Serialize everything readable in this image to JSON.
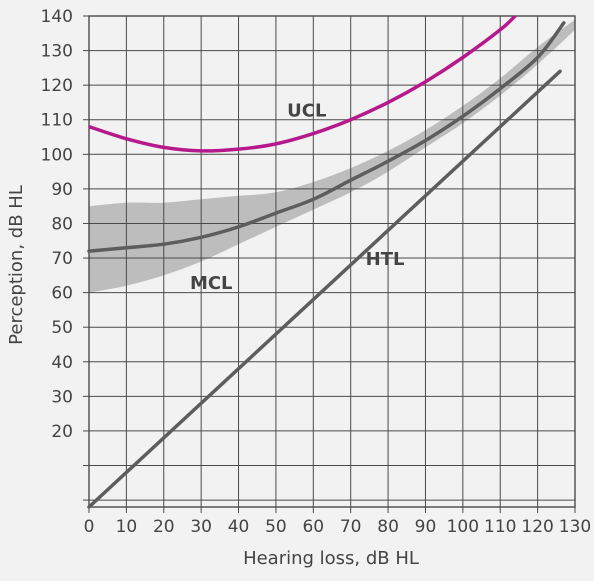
{
  "chart_data": {
    "type": "line",
    "title": "",
    "xlabel": "Hearing loss, dB HL",
    "ylabel": "Perception, dB HL",
    "xlim": [
      0,
      130
    ],
    "ylim": [
      -2,
      140
    ],
    "x_ticks": [
      0,
      10,
      20,
      30,
      40,
      50,
      60,
      70,
      80,
      90,
      100,
      110,
      120,
      130
    ],
    "y_ticks": [
      20,
      30,
      40,
      50,
      60,
      70,
      80,
      90,
      100,
      110,
      120,
      130,
      140
    ],
    "grid": true,
    "band": {
      "name": "MCL range",
      "x": [
        0,
        10,
        20,
        30,
        40,
        50,
        60,
        70,
        80,
        90,
        100,
        110,
        120,
        130
      ],
      "upper": [
        85,
        86,
        86,
        87,
        88,
        89,
        92,
        96,
        101,
        107,
        114,
        122,
        131,
        139
      ],
      "lower": [
        60,
        62,
        65,
        69,
        74,
        79,
        84,
        89,
        95,
        102,
        109,
        117,
        126,
        136
      ]
    },
    "series": [
      {
        "name": "UCL",
        "color": "#b5198c",
        "x": [
          0,
          10,
          20,
          30,
          40,
          50,
          60,
          70,
          80,
          90,
          100,
          110,
          114
        ],
        "y": [
          108,
          104.5,
          102,
          101,
          101.5,
          103,
          106,
          110,
          115,
          121,
          128,
          136,
          140
        ]
      },
      {
        "name": "MCL",
        "color": "#5d5d5d",
        "x": [
          0,
          10,
          20,
          30,
          40,
          50,
          60,
          70,
          80,
          90,
          100,
          110,
          120,
          127
        ],
        "y": [
          72,
          73,
          74,
          76,
          79,
          83,
          87,
          92.5,
          98,
          104,
          111,
          119,
          128,
          138
        ]
      },
      {
        "name": "HTL",
        "color": "#5d5d5d",
        "x": [
          0,
          126
        ],
        "y": [
          -2,
          124
        ]
      }
    ],
    "annotations": [
      {
        "text": "UCL",
        "x": 53,
        "y": 111,
        "series": "UCL"
      },
      {
        "text": "MCL",
        "x": 27,
        "y": 61,
        "series": "MCL"
      },
      {
        "text": "HTL",
        "x": 74,
        "y": 68,
        "series": "HTL"
      }
    ],
    "colors": {
      "background": "#f2f2f2",
      "grid": "#4a4a4a",
      "band": "#bdbdbd",
      "ucl": "#b5198c",
      "mcl": "#5d5d5d",
      "text": "#444444"
    }
  }
}
